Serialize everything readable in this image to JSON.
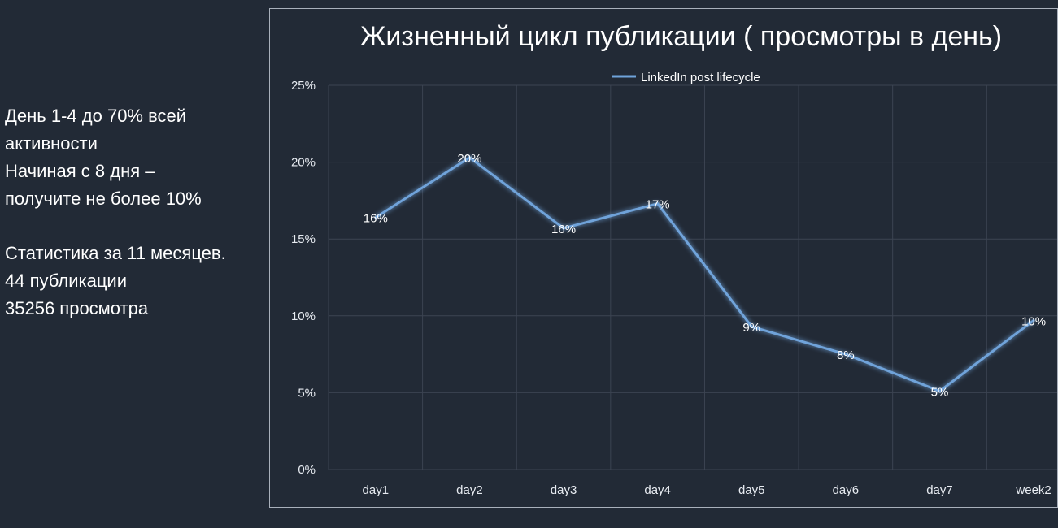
{
  "side_text": {
    "line1": "День 1-4  до  70% всей",
    "line2": "активности",
    "line3": "Начиная с 8 дня  –",
    "line4": "получите не более 10%",
    "line5": "Статистика за 11 месяцев.",
    "line6": "44 публикации",
    "line7": "35256 просмотра"
  },
  "colors": {
    "background": "#222a36",
    "line": "#6fa3da",
    "grid": "#3c4452",
    "frame": "#a9b0bb"
  },
  "chart_data": {
    "type": "line",
    "title": "Жизненный цикл публикации ( просмотры в день)",
    "categories": [
      "day1",
      "day2",
      "day3",
      "day4",
      "day5",
      "day6",
      "day7",
      "week2"
    ],
    "series": [
      {
        "name": "LinkedIn post  lifecycle",
        "values": [
          0.164,
          0.203,
          0.157,
          0.173,
          0.093,
          0.075,
          0.051,
          0.097
        ],
        "labels": [
          "16%",
          "20%",
          "16%",
          "17%",
          "9%",
          "8%",
          "5%",
          "10%"
        ]
      }
    ],
    "y_ticks": [
      "0%",
      "5%",
      "10%",
      "15%",
      "20%",
      "25%"
    ],
    "ylim": [
      0,
      0.25
    ],
    "grid": true,
    "legend_position": "top"
  }
}
